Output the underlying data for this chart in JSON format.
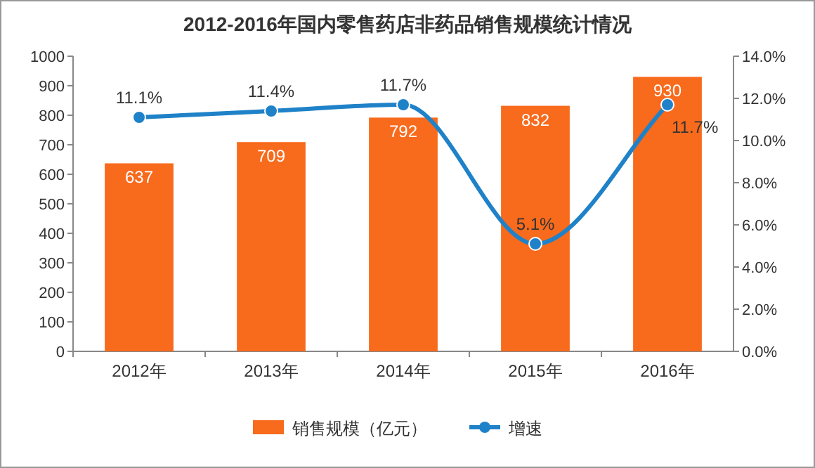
{
  "chart_data": {
    "type": "bar",
    "title": "2012-2016年国内零售药店非药品销售规模统计情况",
    "categories": [
      "2012年",
      "2013年",
      "2014年",
      "2015年",
      "2016年"
    ],
    "series": [
      {
        "name": "销售规模（亿元）",
        "color": "#f86a1c",
        "values": [
          637,
          709,
          792,
          832,
          930
        ]
      },
      {
        "name": "增速",
        "type": "line",
        "axis": "y2",
        "color": "#1f82c8",
        "values": [
          11.1,
          11.4,
          11.7,
          5.1,
          11.7
        ],
        "value_labels": [
          "11.1%",
          "11.4%",
          "11.7%",
          "5.1%",
          "11.7%"
        ]
      }
    ],
    "ylim": [
      0,
      1000
    ],
    "yticks": [
      0,
      100,
      200,
      300,
      400,
      500,
      600,
      700,
      800,
      900,
      1000
    ],
    "y2lim": [
      0,
      14
    ],
    "y2ticks": [
      {
        "value": 0,
        "label": "0.0%"
      },
      {
        "value": 2,
        "label": "2.0%"
      },
      {
        "value": 4,
        "label": "4.0%"
      },
      {
        "value": 6,
        "label": "6.0%"
      },
      {
        "value": 8,
        "label": "8.0%"
      },
      {
        "value": 10,
        "label": "10.0%"
      },
      {
        "value": 12,
        "label": "12.0%"
      },
      {
        "value": 14,
        "label": "14.0%"
      }
    ],
    "data_labels": true,
    "marker": "circle",
    "legend": "bottom",
    "grid": false
  }
}
